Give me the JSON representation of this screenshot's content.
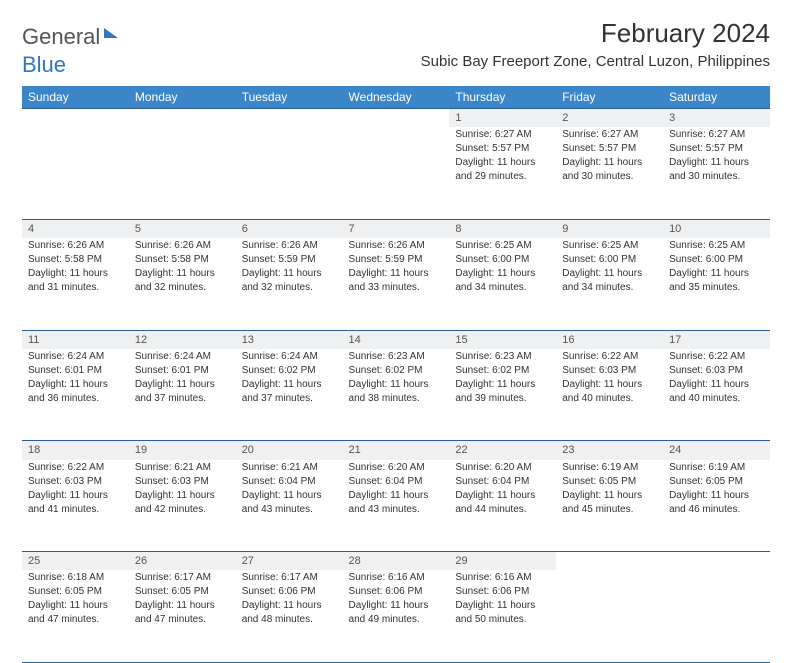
{
  "logo": {
    "part1": "General",
    "part2": "Blue"
  },
  "title": "February 2024",
  "location": "Subic Bay Freeport Zone, Central Luzon, Philippines",
  "colors": {
    "header_bg": "#3a86c8",
    "header_border": "#2b5f8f",
    "daynum_bg": "#eef0f1",
    "text": "#333333",
    "logo_blue": "#2f78bd"
  },
  "weekdays": [
    "Sunday",
    "Monday",
    "Tuesday",
    "Wednesday",
    "Thursday",
    "Friday",
    "Saturday"
  ],
  "weeks": [
    [
      null,
      null,
      null,
      null,
      {
        "n": "1",
        "sr": "Sunrise: 6:27 AM",
        "ss": "Sunset: 5:57 PM",
        "d1": "Daylight: 11 hours",
        "d2": "and 29 minutes."
      },
      {
        "n": "2",
        "sr": "Sunrise: 6:27 AM",
        "ss": "Sunset: 5:57 PM",
        "d1": "Daylight: 11 hours",
        "d2": "and 30 minutes."
      },
      {
        "n": "3",
        "sr": "Sunrise: 6:27 AM",
        "ss": "Sunset: 5:57 PM",
        "d1": "Daylight: 11 hours",
        "d2": "and 30 minutes."
      }
    ],
    [
      {
        "n": "4",
        "sr": "Sunrise: 6:26 AM",
        "ss": "Sunset: 5:58 PM",
        "d1": "Daylight: 11 hours",
        "d2": "and 31 minutes."
      },
      {
        "n": "5",
        "sr": "Sunrise: 6:26 AM",
        "ss": "Sunset: 5:58 PM",
        "d1": "Daylight: 11 hours",
        "d2": "and 32 minutes."
      },
      {
        "n": "6",
        "sr": "Sunrise: 6:26 AM",
        "ss": "Sunset: 5:59 PM",
        "d1": "Daylight: 11 hours",
        "d2": "and 32 minutes."
      },
      {
        "n": "7",
        "sr": "Sunrise: 6:26 AM",
        "ss": "Sunset: 5:59 PM",
        "d1": "Daylight: 11 hours",
        "d2": "and 33 minutes."
      },
      {
        "n": "8",
        "sr": "Sunrise: 6:25 AM",
        "ss": "Sunset: 6:00 PM",
        "d1": "Daylight: 11 hours",
        "d2": "and 34 minutes."
      },
      {
        "n": "9",
        "sr": "Sunrise: 6:25 AM",
        "ss": "Sunset: 6:00 PM",
        "d1": "Daylight: 11 hours",
        "d2": "and 34 minutes."
      },
      {
        "n": "10",
        "sr": "Sunrise: 6:25 AM",
        "ss": "Sunset: 6:00 PM",
        "d1": "Daylight: 11 hours",
        "d2": "and 35 minutes."
      }
    ],
    [
      {
        "n": "11",
        "sr": "Sunrise: 6:24 AM",
        "ss": "Sunset: 6:01 PM",
        "d1": "Daylight: 11 hours",
        "d2": "and 36 minutes."
      },
      {
        "n": "12",
        "sr": "Sunrise: 6:24 AM",
        "ss": "Sunset: 6:01 PM",
        "d1": "Daylight: 11 hours",
        "d2": "and 37 minutes."
      },
      {
        "n": "13",
        "sr": "Sunrise: 6:24 AM",
        "ss": "Sunset: 6:02 PM",
        "d1": "Daylight: 11 hours",
        "d2": "and 37 minutes."
      },
      {
        "n": "14",
        "sr": "Sunrise: 6:23 AM",
        "ss": "Sunset: 6:02 PM",
        "d1": "Daylight: 11 hours",
        "d2": "and 38 minutes."
      },
      {
        "n": "15",
        "sr": "Sunrise: 6:23 AM",
        "ss": "Sunset: 6:02 PM",
        "d1": "Daylight: 11 hours",
        "d2": "and 39 minutes."
      },
      {
        "n": "16",
        "sr": "Sunrise: 6:22 AM",
        "ss": "Sunset: 6:03 PM",
        "d1": "Daylight: 11 hours",
        "d2": "and 40 minutes."
      },
      {
        "n": "17",
        "sr": "Sunrise: 6:22 AM",
        "ss": "Sunset: 6:03 PM",
        "d1": "Daylight: 11 hours",
        "d2": "and 40 minutes."
      }
    ],
    [
      {
        "n": "18",
        "sr": "Sunrise: 6:22 AM",
        "ss": "Sunset: 6:03 PM",
        "d1": "Daylight: 11 hours",
        "d2": "and 41 minutes."
      },
      {
        "n": "19",
        "sr": "Sunrise: 6:21 AM",
        "ss": "Sunset: 6:03 PM",
        "d1": "Daylight: 11 hours",
        "d2": "and 42 minutes."
      },
      {
        "n": "20",
        "sr": "Sunrise: 6:21 AM",
        "ss": "Sunset: 6:04 PM",
        "d1": "Daylight: 11 hours",
        "d2": "and 43 minutes."
      },
      {
        "n": "21",
        "sr": "Sunrise: 6:20 AM",
        "ss": "Sunset: 6:04 PM",
        "d1": "Daylight: 11 hours",
        "d2": "and 43 minutes."
      },
      {
        "n": "22",
        "sr": "Sunrise: 6:20 AM",
        "ss": "Sunset: 6:04 PM",
        "d1": "Daylight: 11 hours",
        "d2": "and 44 minutes."
      },
      {
        "n": "23",
        "sr": "Sunrise: 6:19 AM",
        "ss": "Sunset: 6:05 PM",
        "d1": "Daylight: 11 hours",
        "d2": "and 45 minutes."
      },
      {
        "n": "24",
        "sr": "Sunrise: 6:19 AM",
        "ss": "Sunset: 6:05 PM",
        "d1": "Daylight: 11 hours",
        "d2": "and 46 minutes."
      }
    ],
    [
      {
        "n": "25",
        "sr": "Sunrise: 6:18 AM",
        "ss": "Sunset: 6:05 PM",
        "d1": "Daylight: 11 hours",
        "d2": "and 47 minutes."
      },
      {
        "n": "26",
        "sr": "Sunrise: 6:17 AM",
        "ss": "Sunset: 6:05 PM",
        "d1": "Daylight: 11 hours",
        "d2": "and 47 minutes."
      },
      {
        "n": "27",
        "sr": "Sunrise: 6:17 AM",
        "ss": "Sunset: 6:06 PM",
        "d1": "Daylight: 11 hours",
        "d2": "and 48 minutes."
      },
      {
        "n": "28",
        "sr": "Sunrise: 6:16 AM",
        "ss": "Sunset: 6:06 PM",
        "d1": "Daylight: 11 hours",
        "d2": "and 49 minutes."
      },
      {
        "n": "29",
        "sr": "Sunrise: 6:16 AM",
        "ss": "Sunset: 6:06 PM",
        "d1": "Daylight: 11 hours",
        "d2": "and 50 minutes."
      },
      null,
      null
    ]
  ]
}
